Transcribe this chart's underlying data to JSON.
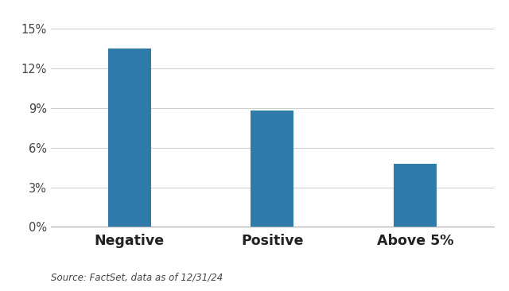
{
  "categories": [
    "Negative",
    "Positive",
    "Above 5%"
  ],
  "values": [
    0.135,
    0.088,
    0.048
  ],
  "bar_color": "#2e7aab",
  "bar_width": 0.3,
  "xlim": [
    -0.55,
    2.55
  ],
  "ylim": [
    0,
    0.156
  ],
  "yticks": [
    0.0,
    0.03,
    0.06,
    0.09,
    0.12,
    0.15
  ],
  "background_color": "#ffffff",
  "grid_color": "#d0d0d0",
  "source_text": "Source: FactSet, data as of 12/31/24",
  "source_fontsize": 8.5,
  "ytick_fontsize": 10.5,
  "xtick_fontsize": 12.5
}
